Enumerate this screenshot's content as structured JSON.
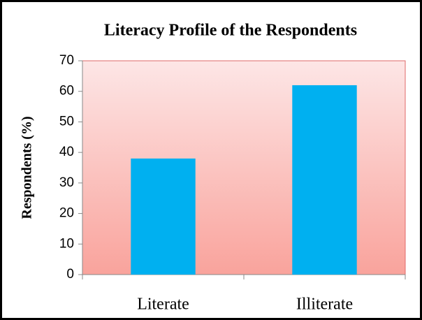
{
  "chart_data": {
    "type": "bar",
    "title": "Literacy Profile of the Respondents",
    "y_label": "Respondents (%)",
    "categories": [
      "Literate",
      "Illiterate"
    ],
    "values": [
      38,
      62
    ],
    "color": "#00b0f0",
    "ylim": [
      0,
      70
    ],
    "yticks": [
      0,
      10,
      20,
      30,
      40,
      50,
      60,
      70
    ],
    "grid": false
  }
}
